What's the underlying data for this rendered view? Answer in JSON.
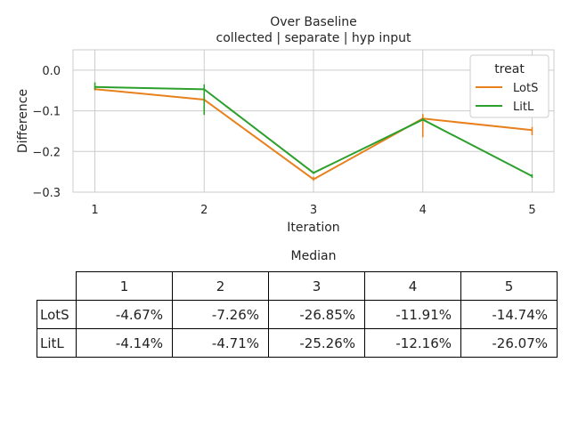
{
  "chart_data": {
    "type": "line",
    "title": "Over Baseline",
    "subtitle": "collected | separate | hyp input",
    "xlabel": "Iteration",
    "ylabel": "Difference",
    "x": [
      1,
      2,
      3,
      4,
      5
    ],
    "xlim": [
      0.8,
      5.2
    ],
    "ylim": [
      -0.3,
      0.05
    ],
    "xticks": [
      1,
      2,
      3,
      4,
      5
    ],
    "yticks": [
      0.0,
      -0.1,
      -0.2,
      -0.3
    ],
    "ytick_labels": [
      "0.0",
      "−0.1",
      "−0.2",
      "−0.3"
    ],
    "grid": true,
    "legend": {
      "title": "treat",
      "position": "top-right"
    },
    "series": [
      {
        "name": "LotS",
        "color": "#e8811d",
        "values": [
          -0.0467,
          -0.0726,
          -0.2685,
          -0.1191,
          -0.1474
        ],
        "error_low": [
          -0.05,
          -0.08,
          -0.272,
          -0.165,
          -0.16
        ],
        "error_high": [
          -0.04,
          -0.065,
          -0.262,
          -0.108,
          -0.14
        ]
      },
      {
        "name": "LitL",
        "color": "#2ca02c",
        "values": [
          -0.0414,
          -0.0471,
          -0.2526,
          -0.1216,
          -0.2607
        ],
        "error_low": [
          -0.048,
          -0.11,
          -0.255,
          -0.125,
          -0.265
        ],
        "error_high": [
          -0.03,
          -0.035,
          -0.25,
          -0.118,
          -0.256
        ]
      }
    ]
  },
  "median_table": {
    "title": "Median",
    "columns": [
      "1",
      "2",
      "3",
      "4",
      "5"
    ],
    "rows": [
      {
        "label": "LotS",
        "values": [
          "-4.67%",
          "-7.26%",
          "-26.85%",
          "-11.91%",
          "-14.74%"
        ]
      },
      {
        "label": "LitL",
        "values": [
          "-4.14%",
          "-4.71%",
          "-25.26%",
          "-12.16%",
          "-26.07%"
        ]
      }
    ]
  }
}
